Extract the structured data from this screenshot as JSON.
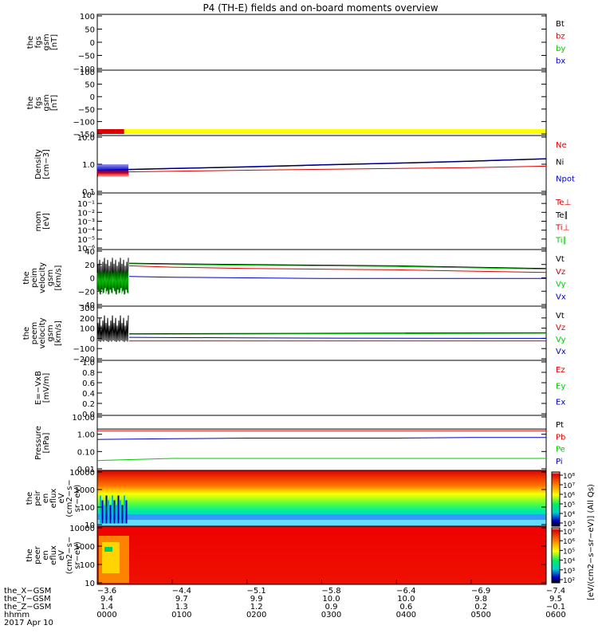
{
  "title": "P4 (TH-E) fields and on-board moments overview",
  "panels": [
    {
      "id": "fgs",
      "ylabel": [
        "the",
        "fgs",
        "gsm",
        "[nT]"
      ],
      "ticks": [
        "100",
        "50",
        "0",
        "−50",
        "−100"
      ],
      "legend": [
        {
          "text": "Bt",
          "color": "#000000"
        },
        {
          "text": "bz",
          "color": "#dd0000"
        },
        {
          "text": "by",
          "color": "#00cc00"
        },
        {
          "text": "bx",
          "color": "#0000cc"
        }
      ]
    },
    {
      "id": "fgs2",
      "ylabel": [
        "the",
        "fgs",
        "gsm",
        "[nT]"
      ],
      "ticks": [
        "100",
        "50",
        "0",
        "−50",
        "−100",
        "−150"
      ],
      "legend": [],
      "mode_bar": {
        "segments": [
          {
            "from": 0.0,
            "to": 0.06,
            "color": "#dd0000"
          },
          {
            "from": 0.06,
            "to": 1.0,
            "color": "#ffff00"
          }
        ]
      }
    },
    {
      "id": "density",
      "ylabel": [
        "Density",
        "[cm−3]"
      ],
      "ticks": [
        "10.0",
        "1.0",
        "0.1"
      ],
      "legend": [
        {
          "text": "Ne",
          "color": "#dd0000"
        },
        {
          "text": "Ni",
          "color": "#000000"
        },
        {
          "text": "Npot",
          "color": "#0000cc"
        }
      ]
    },
    {
      "id": "temp",
      "ylabel": [
        "mom",
        "[eV]"
      ],
      "ticks": [
        "10⁰",
        "10⁻¹",
        "10⁻²",
        "10⁻³",
        "10⁻⁴",
        "10⁻⁵",
        "10⁻⁶"
      ],
      "legend": [
        {
          "text": "Te⊥",
          "color": "#dd0000"
        },
        {
          "text": "Te∥",
          "color": "#000000"
        },
        {
          "text": "Ti⊥",
          "color": "#dd0000"
        },
        {
          "text": "Ti∥",
          "color": "#00cc00"
        }
      ]
    },
    {
      "id": "peim_v",
      "ylabel": [
        "the",
        "peim",
        "velocity",
        "gsm",
        "[km/s]"
      ],
      "ticks": [
        "40",
        "20",
        "0",
        "−20",
        "−40"
      ],
      "legend": [
        {
          "text": "Vt",
          "color": "#000000"
        },
        {
          "text": "Vz",
          "color": "#dd0000"
        },
        {
          "text": "Vy",
          "color": "#00cc00"
        },
        {
          "text": "Vx",
          "color": "#0000cc"
        }
      ]
    },
    {
      "id": "peem_v",
      "ylabel": [
        "the",
        "peem",
        "velocity",
        "gsm",
        "[km/s]"
      ],
      "ticks": [
        "300",
        "200",
        "100",
        "0",
        "−100",
        "−200"
      ],
      "legend": [
        {
          "text": "Vt",
          "color": "#000000"
        },
        {
          "text": "Vz",
          "color": "#dd0000"
        },
        {
          "text": "Vy",
          "color": "#00cc00"
        },
        {
          "text": "Vx",
          "color": "#0000cc"
        }
      ]
    },
    {
      "id": "efield",
      "ylabel": [
        "E=−VxB",
        "[mV/m]"
      ],
      "ticks": [
        "1.0",
        "0.8",
        "0.6",
        "0.4",
        "0.2",
        "0.0"
      ],
      "legend": [
        {
          "text": "Ez",
          "color": "#dd0000"
        },
        {
          "text": "Ey",
          "color": "#00cc00"
        },
        {
          "text": "Ex",
          "color": "#0000cc"
        }
      ]
    },
    {
      "id": "pressure",
      "ylabel": [
        "Pressure",
        "[nPa]"
      ],
      "ticks": [
        "10.00",
        "1.00",
        "0.10",
        "0.01"
      ],
      "legend": [
        {
          "text": "Pt",
          "color": "#000000"
        },
        {
          "text": "Pb",
          "color": "#dd0000"
        },
        {
          "text": "Pe",
          "color": "#00cc00"
        },
        {
          "text": "Pi",
          "color": "#0000cc"
        }
      ]
    },
    {
      "id": "peir",
      "ylabel": [
        "the",
        "peir",
        "en",
        "eflux",
        "eV",
        "(cm2−s−",
        "sr−eV)"
      ],
      "ticks": [
        "10000",
        "1000",
        "100",
        "10"
      ],
      "legend": []
    },
    {
      "id": "peer",
      "ylabel": [
        "the",
        "peer",
        "en",
        "eflux",
        "eV",
        "(cm2−s−",
        "sr−eV)"
      ],
      "ticks": [
        "10000",
        "1000",
        "100",
        "10"
      ],
      "legend": []
    }
  ],
  "colorbar1": {
    "ticks": [
      "10⁸",
      "10⁷",
      "10⁶",
      "10⁵",
      "10⁴",
      "10³"
    ]
  },
  "colorbar2": {
    "ticks": [
      "10⁷",
      "10⁶",
      "10⁵",
      "10⁴",
      "10³",
      "10²"
    ]
  },
  "colorbar_label": "[eV/(cm2−s−sr−eV)] (All Qs)",
  "xaxis": {
    "row_labels": [
      "the_X−GSM",
      "the_Y−GSM",
      "the_Z−GSM",
      "hhmm",
      "2017 Apr 10"
    ],
    "columns": [
      {
        "x": "−3.6",
        "y": "9.4",
        "z": "1.4",
        "t": "0000"
      },
      {
        "x": "−4.4",
        "y": "9.7",
        "z": "1.3",
        "t": "0100"
      },
      {
        "x": "−5.1",
        "y": "9.9",
        "z": "1.2",
        "t": "0200"
      },
      {
        "x": "−5.8",
        "y": "10.0",
        "z": "0.9",
        "t": "0300"
      },
      {
        "x": "−6.4",
        "y": "10.0",
        "z": "0.6",
        "t": "0400"
      },
      {
        "x": "−6.9",
        "y": "9.8",
        "z": "0.2",
        "t": "0500"
      },
      {
        "x": "−7.4",
        "y": "9.5",
        "z": "−0.1",
        "t": "0600"
      }
    ]
  },
  "chart_data": {
    "type": "line",
    "title": "P4 (TH-E) fields and on-board moments overview",
    "x": [
      "0000",
      "0100",
      "0200",
      "0300",
      "0400",
      "0500",
      "0600"
    ],
    "xlabel": "hhmm",
    "series": [
      {
        "name": "Ni",
        "values": [
          0.6,
          0.7,
          0.8,
          0.95,
          1.1,
          1.3,
          1.6
        ]
      },
      {
        "name": "Ne",
        "values": [
          0.5,
          0.55,
          0.6,
          0.65,
          0.7,
          0.75,
          0.85
        ]
      },
      {
        "name": "Vt",
        "values": [
          22,
          21,
          20,
          19,
          18,
          16,
          14
        ]
      },
      {
        "name": "Vz",
        "values": [
          18,
          16,
          14,
          13,
          12,
          10,
          8
        ]
      },
      {
        "name": "Vy",
        "values": [
          21,
          20,
          19,
          18,
          17,
          15,
          13
        ]
      },
      {
        "name": "Vx",
        "values": [
          2,
          1,
          0,
          -1,
          -1,
          -1,
          -1
        ]
      },
      {
        "name": "Pt",
        "values": [
          2.0,
          2.0,
          2.0,
          2.0,
          2.0,
          2.0,
          2.0
        ]
      },
      {
        "name": "Pb",
        "values": [
          1.6,
          1.6,
          1.6,
          1.6,
          1.6,
          1.6,
          1.6
        ]
      },
      {
        "name": "Pe",
        "values": [
          0.03,
          0.04,
          0.04,
          0.04,
          0.04,
          0.04,
          0.04
        ]
      },
      {
        "name": "Pi",
        "values": [
          0.5,
          0.55,
          0.6,
          0.6,
          0.6,
          0.65,
          0.65
        ]
      }
    ],
    "grid": false,
    "legend": "right"
  }
}
